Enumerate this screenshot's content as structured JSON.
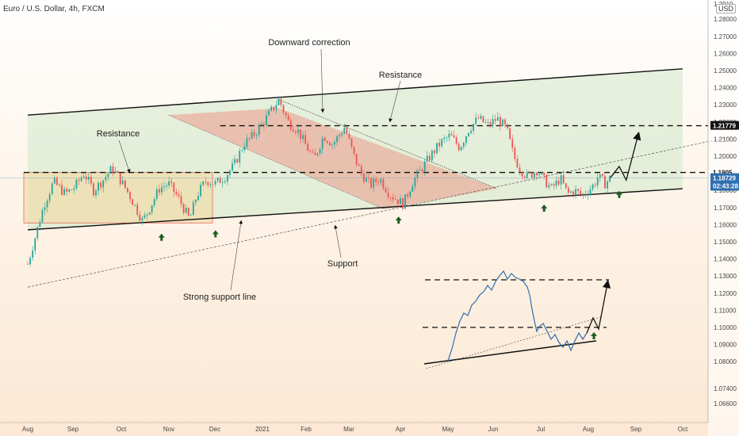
{
  "title": "Euro / U.S. Dollar, 4h, FXCM",
  "currency_badge": "USD",
  "chart_data": {
    "type": "line",
    "title": "Euro / U.S. Dollar, 4h, FXCM",
    "xlabel": "",
    "ylabel": "",
    "ylim": [
      1.055,
      1.295
    ],
    "grid": false,
    "x_ticks": [
      "Aug",
      "Sep",
      "Oct",
      "Nov",
      "Dec",
      "2021",
      "Feb",
      "Mar",
      "Apr",
      "May",
      "Jun",
      "Jul",
      "Aug",
      "Sep",
      "Oct"
    ],
    "y_ticks": [
      "1.28000",
      "1.27000",
      "1.26000",
      "1.25000",
      "1.24000",
      "1.23000",
      "1.22000",
      "1.21000",
      "1.20000",
      "1.19000",
      "1.18000",
      "1.17000",
      "1.16000",
      "1.15000",
      "1.14000",
      "1.13000",
      "1.12000",
      "1.11000",
      "1.10000",
      "1.09000",
      "1.08000",
      "1.07400",
      "1.06600"
    ],
    "y_top_label": "1.2910",
    "price_series": [
      {
        "t": 0,
        "p": 1.137
      },
      {
        "t": 0.15,
        "p": 1.152
      },
      {
        "t": 0.35,
        "p": 1.172
      },
      {
        "t": 0.55,
        "p": 1.185
      },
      {
        "t": 0.8,
        "p": 1.178
      },
      {
        "t": 1.0,
        "p": 1.182
      },
      {
        "t": 1.2,
        "p": 1.19
      },
      {
        "t": 1.4,
        "p": 1.18
      },
      {
        "t": 1.6,
        "p": 1.186
      },
      {
        "t": 1.8,
        "p": 1.193
      },
      {
        "t": 2.0,
        "p": 1.185
      },
      {
        "t": 2.15,
        "p": 1.178
      },
      {
        "t": 2.3,
        "p": 1.17
      },
      {
        "t": 2.45,
        "p": 1.162
      },
      {
        "t": 2.6,
        "p": 1.17
      },
      {
        "t": 2.8,
        "p": 1.181
      },
      {
        "t": 3.0,
        "p": 1.184
      },
      {
        "t": 3.2,
        "p": 1.176
      },
      {
        "t": 3.35,
        "p": 1.168
      },
      {
        "t": 3.45,
        "p": 1.163
      },
      {
        "t": 3.6,
        "p": 1.177
      },
      {
        "t": 3.8,
        "p": 1.186
      },
      {
        "t": 4.0,
        "p": 1.184
      },
      {
        "t": 4.2,
        "p": 1.188
      },
      {
        "t": 4.4,
        "p": 1.195
      },
      {
        "t": 4.6,
        "p": 1.207
      },
      {
        "t": 4.8,
        "p": 1.212
      },
      {
        "t": 5.0,
        "p": 1.219
      },
      {
        "t": 5.2,
        "p": 1.227
      },
      {
        "t": 5.35,
        "p": 1.233
      },
      {
        "t": 5.55,
        "p": 1.22
      },
      {
        "t": 5.75,
        "p": 1.215
      },
      {
        "t": 5.95,
        "p": 1.205
      },
      {
        "t": 6.1,
        "p": 1.198
      },
      {
        "t": 6.3,
        "p": 1.212
      },
      {
        "t": 6.5,
        "p": 1.207
      },
      {
        "t": 6.75,
        "p": 1.217
      },
      {
        "t": 6.95,
        "p": 1.2
      },
      {
        "t": 7.1,
        "p": 1.19
      },
      {
        "t": 7.3,
        "p": 1.183
      },
      {
        "t": 7.5,
        "p": 1.187
      },
      {
        "t": 7.7,
        "p": 1.178
      },
      {
        "t": 7.85,
        "p": 1.175
      },
      {
        "t": 8.0,
        "p": 1.172
      },
      {
        "t": 8.2,
        "p": 1.185
      },
      {
        "t": 8.4,
        "p": 1.193
      },
      {
        "t": 8.6,
        "p": 1.201
      },
      {
        "t": 8.8,
        "p": 1.208
      },
      {
        "t": 9.0,
        "p": 1.212
      },
      {
        "t": 9.2,
        "p": 1.205
      },
      {
        "t": 9.4,
        "p": 1.216
      },
      {
        "t": 9.6,
        "p": 1.222
      },
      {
        "t": 9.8,
        "p": 1.218
      },
      {
        "t": 10.0,
        "p": 1.222
      },
      {
        "t": 10.2,
        "p": 1.216
      },
      {
        "t": 10.35,
        "p": 1.2
      },
      {
        "t": 10.5,
        "p": 1.192
      },
      {
        "t": 10.65,
        "p": 1.188
      },
      {
        "t": 10.85,
        "p": 1.192
      },
      {
        "t": 11.0,
        "p": 1.186
      },
      {
        "t": 11.15,
        "p": 1.181
      },
      {
        "t": 11.35,
        "p": 1.187
      },
      {
        "t": 11.5,
        "p": 1.178
      },
      {
        "t": 11.65,
        "p": 1.18
      },
      {
        "t": 11.8,
        "p": 1.177
      },
      {
        "t": 11.9,
        "p": 1.179
      },
      {
        "t": 12.05,
        "p": 1.183
      },
      {
        "t": 12.15,
        "p": 1.188
      },
      {
        "t": 12.3,
        "p": 1.184
      },
      {
        "t": 12.4,
        "p": 1.187
      }
    ],
    "projection": [
      {
        "t": 12.4,
        "p": 1.187
      },
      {
        "t": 12.6,
        "p": 1.194
      },
      {
        "t": 12.75,
        "p": 1.186
      },
      {
        "t": 13.0,
        "p": 1.212
      }
    ],
    "levels": {
      "resistance_upper": 1.21779,
      "resistance_lower": 1.1905,
      "current_price": 1.18729,
      "countdown": "02:43:28"
    },
    "channel": {
      "upper": [
        {
          "t": 0,
          "p": 1.224
        },
        {
          "t": 13.95,
          "p": 1.251
        }
      ],
      "lower": [
        {
          "t": 0,
          "p": 1.157
        },
        {
          "t": 13.95,
          "p": 1.181
        }
      ]
    },
    "strong_support_line": [
      {
        "t": 0,
        "p": 1.1235
      },
      {
        "t": 15.0,
        "p": 1.2115
      }
    ],
    "annotations": [
      {
        "text": "Downward correction"
      },
      {
        "text": "Resistance"
      },
      {
        "text": "Resistance"
      },
      {
        "text": "Support"
      },
      {
        "text": "Strong support line"
      }
    ],
    "inset": {
      "levels": [
        "upper",
        "lower"
      ]
    }
  }
}
